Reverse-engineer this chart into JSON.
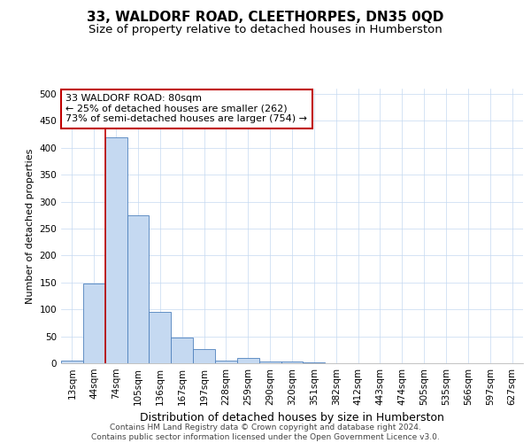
{
  "title": "33, WALDORF ROAD, CLEETHORPES, DN35 0QD",
  "subtitle": "Size of property relative to detached houses in Humberston",
  "xlabel": "Distribution of detached houses by size in Humberston",
  "ylabel": "Number of detached properties",
  "categories": [
    "13sqm",
    "44sqm",
    "74sqm",
    "105sqm",
    "136sqm",
    "167sqm",
    "197sqm",
    "228sqm",
    "259sqm",
    "290sqm",
    "320sqm",
    "351sqm",
    "382sqm",
    "412sqm",
    "443sqm",
    "474sqm",
    "505sqm",
    "535sqm",
    "566sqm",
    "597sqm",
    "627sqm"
  ],
  "bar_heights": [
    5,
    148,
    420,
    275,
    95,
    48,
    27,
    5,
    10,
    4,
    3,
    2,
    0,
    0,
    0,
    0,
    0,
    0,
    0,
    0,
    0
  ],
  "bar_color": "#c5d9f1",
  "bar_edgecolor": "#4f81bd",
  "vline_color": "#c00000",
  "annotation_text": "33 WALDORF ROAD: 80sqm\n← 25% of detached houses are smaller (262)\n73% of semi-detached houses are larger (754) →",
  "annotation_box_color": "#ffffff",
  "annotation_box_edgecolor": "#c00000",
  "ylim": [
    0,
    510
  ],
  "yticks": [
    0,
    50,
    100,
    150,
    200,
    250,
    300,
    350,
    400,
    450,
    500
  ],
  "grid_color": "#c5d9f1",
  "footnote": "Contains HM Land Registry data © Crown copyright and database right 2024.\nContains public sector information licensed under the Open Government Licence v3.0.",
  "title_fontsize": 11,
  "subtitle_fontsize": 9.5,
  "xlabel_fontsize": 9,
  "ylabel_fontsize": 8,
  "tick_fontsize": 7.5,
  "annotation_fontsize": 8,
  "footnote_fontsize": 6.5
}
